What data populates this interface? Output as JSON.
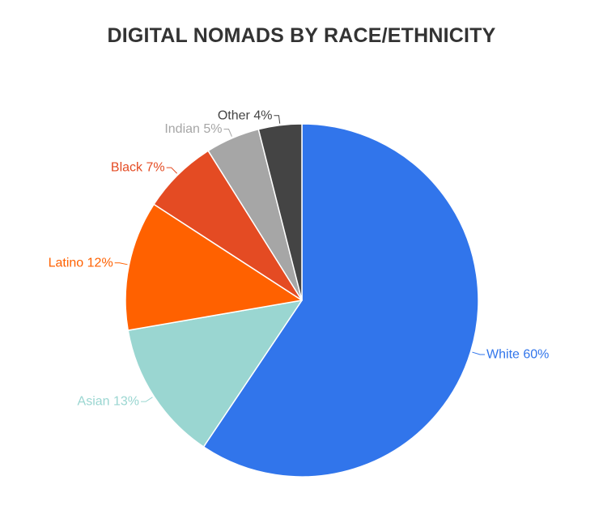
{
  "chart_data": {
    "type": "pie",
    "title": "DIGITAL NOMADS BY RACE/ETHNICITY",
    "start_angle_deg": 0,
    "direction": "clockwise",
    "slices": [
      {
        "label": "White",
        "value": 60,
        "display": "White 60%",
        "color": "#3175EB"
      },
      {
        "label": "Asian",
        "value": 13,
        "display": "Asian 13%",
        "color": "#9AD6D1"
      },
      {
        "label": "Latino",
        "value": 12,
        "display": "Latino 12%",
        "color": "#FF6100"
      },
      {
        "label": "Black",
        "value": 7,
        "display": "Black 7%",
        "color": "#E44B23"
      },
      {
        "label": "Indian",
        "value": 5,
        "display": "Indian 5%",
        "color": "#A6A6A6"
      },
      {
        "label": "Other",
        "value": 4,
        "display": "Other 4%",
        "color": "#444444"
      }
    ]
  }
}
